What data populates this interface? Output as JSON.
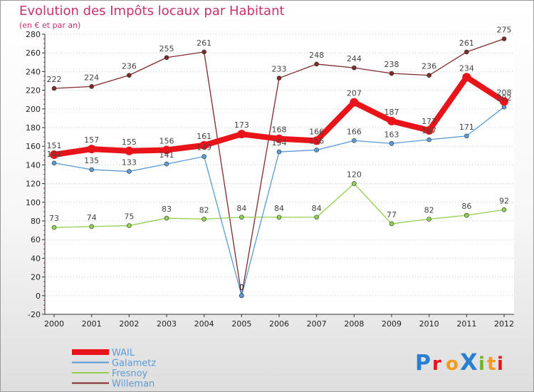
{
  "chart_data": {
    "type": "line",
    "title": "Evolution des Impôts locaux par Habitant",
    "subtitle": "(en € et par an)",
    "categories": [
      "2000",
      "2001",
      "2002",
      "2003",
      "2004",
      "2005",
      "2006",
      "2007",
      "2008",
      "2009",
      "2010",
      "2011",
      "2012"
    ],
    "ylim": [
      -20,
      280
    ],
    "yticks": [
      -20,
      0,
      20,
      40,
      60,
      80,
      100,
      120,
      140,
      160,
      180,
      200,
      220,
      240,
      260,
      280
    ],
    "grid": "horizontal dotted",
    "legend_position": "bottom-left",
    "series": [
      {
        "name": "WAIL",
        "color": "#e8141a",
        "values": [
          151,
          157,
          155,
          156,
          161,
          173,
          168,
          166,
          207,
          187,
          177,
          234,
          208
        ]
      },
      {
        "name": "Galametz",
        "color": "#5b9bd5",
        "values": [
          142,
          135,
          133,
          141,
          149,
          0,
          154,
          156,
          166,
          163,
          167,
          171,
          202
        ]
      },
      {
        "name": "Fresnoy",
        "color": "#92d050",
        "values": [
          73,
          74,
          75,
          83,
          82,
          84,
          84,
          84,
          120,
          77,
          82,
          86,
          92
        ]
      },
      {
        "name": "Willeman",
        "color": "#7f2a2a",
        "values": [
          222,
          224,
          236,
          255,
          261,
          0,
          233,
          248,
          244,
          238,
          236,
          261,
          275
        ]
      }
    ],
    "annotation": "0"
  },
  "logo": {
    "text": "ProXiti"
  }
}
